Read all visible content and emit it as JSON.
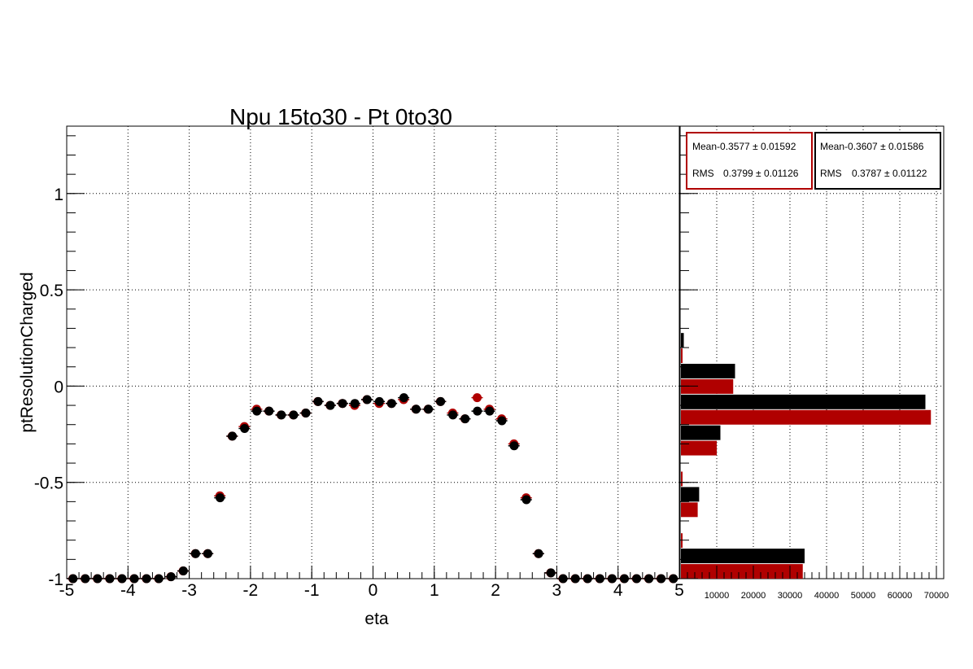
{
  "chart_data": [
    {
      "type": "scatter",
      "title": "Npu 15to30 - Pt 0to30",
      "xlabel": "eta",
      "ylabel": "ptResolutionCharged",
      "xlim": [
        -5,
        5
      ],
      "ylim": [
        -1,
        1.35
      ],
      "xticks": [
        "-5",
        "-4",
        "-3",
        "-2",
        "-1",
        "0",
        "1",
        "2",
        "3",
        "4",
        "5"
      ],
      "yticks": [
        "-1",
        "-0.5",
        "0",
        "0.5",
        "1"
      ],
      "grid": true,
      "marker": "circle",
      "x": [
        -4.9,
        -4.7,
        -4.5,
        -4.3,
        -4.1,
        -3.9,
        -3.7,
        -3.5,
        -3.3,
        -3.1,
        -2.9,
        -2.7,
        -2.5,
        -2.3,
        -2.1,
        -1.9,
        -1.7,
        -1.5,
        -1.3,
        -1.1,
        -0.9,
        -0.7,
        -0.5,
        -0.3,
        -0.1,
        0.1,
        0.3,
        0.5,
        0.7,
        0.9,
        1.1,
        1.3,
        1.5,
        1.7,
        1.9,
        2.1,
        2.3,
        2.5,
        2.7,
        2.9,
        3.1,
        3.3,
        3.5,
        3.7,
        3.9,
        4.1,
        4.3,
        4.5,
        4.7,
        4.9
      ],
      "series": [
        {
          "color": "#b00000",
          "values": [
            -1,
            -1,
            -1,
            -1,
            -1,
            -1,
            -1,
            -1,
            -0.99,
            -0.96,
            -0.87,
            -0.87,
            -0.57,
            -0.26,
            -0.21,
            -0.12,
            -0.13,
            -0.15,
            -0.15,
            -0.14,
            -0.08,
            -0.1,
            -0.09,
            -0.1,
            -0.07,
            -0.09,
            -0.09,
            -0.07,
            -0.12,
            -0.12,
            -0.08,
            -0.14,
            -0.17,
            -0.06,
            -0.12,
            -0.17,
            -0.3,
            -0.58,
            -0.87,
            -0.97,
            -1,
            -1,
            -1,
            -1,
            -1,
            -1,
            -1,
            -1,
            -1,
            -1
          ]
        },
        {
          "color": "#000000",
          "values": [
            -1,
            -1,
            -1,
            -1,
            -1,
            -1,
            -1,
            -1,
            -0.99,
            -0.96,
            -0.87,
            -0.87,
            -0.58,
            -0.26,
            -0.22,
            -0.13,
            -0.13,
            -0.15,
            -0.15,
            -0.14,
            -0.08,
            -0.1,
            -0.09,
            -0.09,
            -0.07,
            -0.08,
            -0.09,
            -0.06,
            -0.12,
            -0.12,
            -0.08,
            -0.15,
            -0.17,
            -0.13,
            -0.13,
            -0.18,
            -0.31,
            -0.59,
            -0.87,
            -0.97,
            -1,
            -1,
            -1,
            -1,
            -1,
            -1,
            -1,
            -1,
            -1,
            -1
          ]
        }
      ]
    },
    {
      "type": "bar",
      "orientation": "horizontal",
      "xlim": [
        0,
        72000
      ],
      "xticks": [
        "10000",
        "20000",
        "30000",
        "40000",
        "50000",
        "60000",
        "70000"
      ],
      "y_bins": [
        -1.0,
        -0.84,
        -0.68,
        -0.52,
        -0.36,
        -0.2,
        -0.04,
        0.12
      ],
      "series": [
        {
          "color": "#000000",
          "values": [
            34000,
            0,
            5200,
            0,
            11000,
            67000,
            15000,
            1000
          ]
        },
        {
          "color": "#b00000",
          "values": [
            33500,
            400,
            4800,
            500,
            10000,
            68500,
            14500,
            300
          ]
        }
      ],
      "stats": [
        {
          "color": "#b00000",
          "mean_label": "Mean",
          "mean": "-0.3577",
          "mean_err": "0.01592",
          "rms_label": "RMS",
          "rms": "0.3799",
          "rms_err": "0.01126"
        },
        {
          "color": "#000000",
          "mean_label": "Mean",
          "mean": "-0.3607",
          "mean_err": "0.01586",
          "rms_label": "RMS",
          "rms": "0.3787",
          "rms_err": "0.01122"
        }
      ]
    }
  ]
}
